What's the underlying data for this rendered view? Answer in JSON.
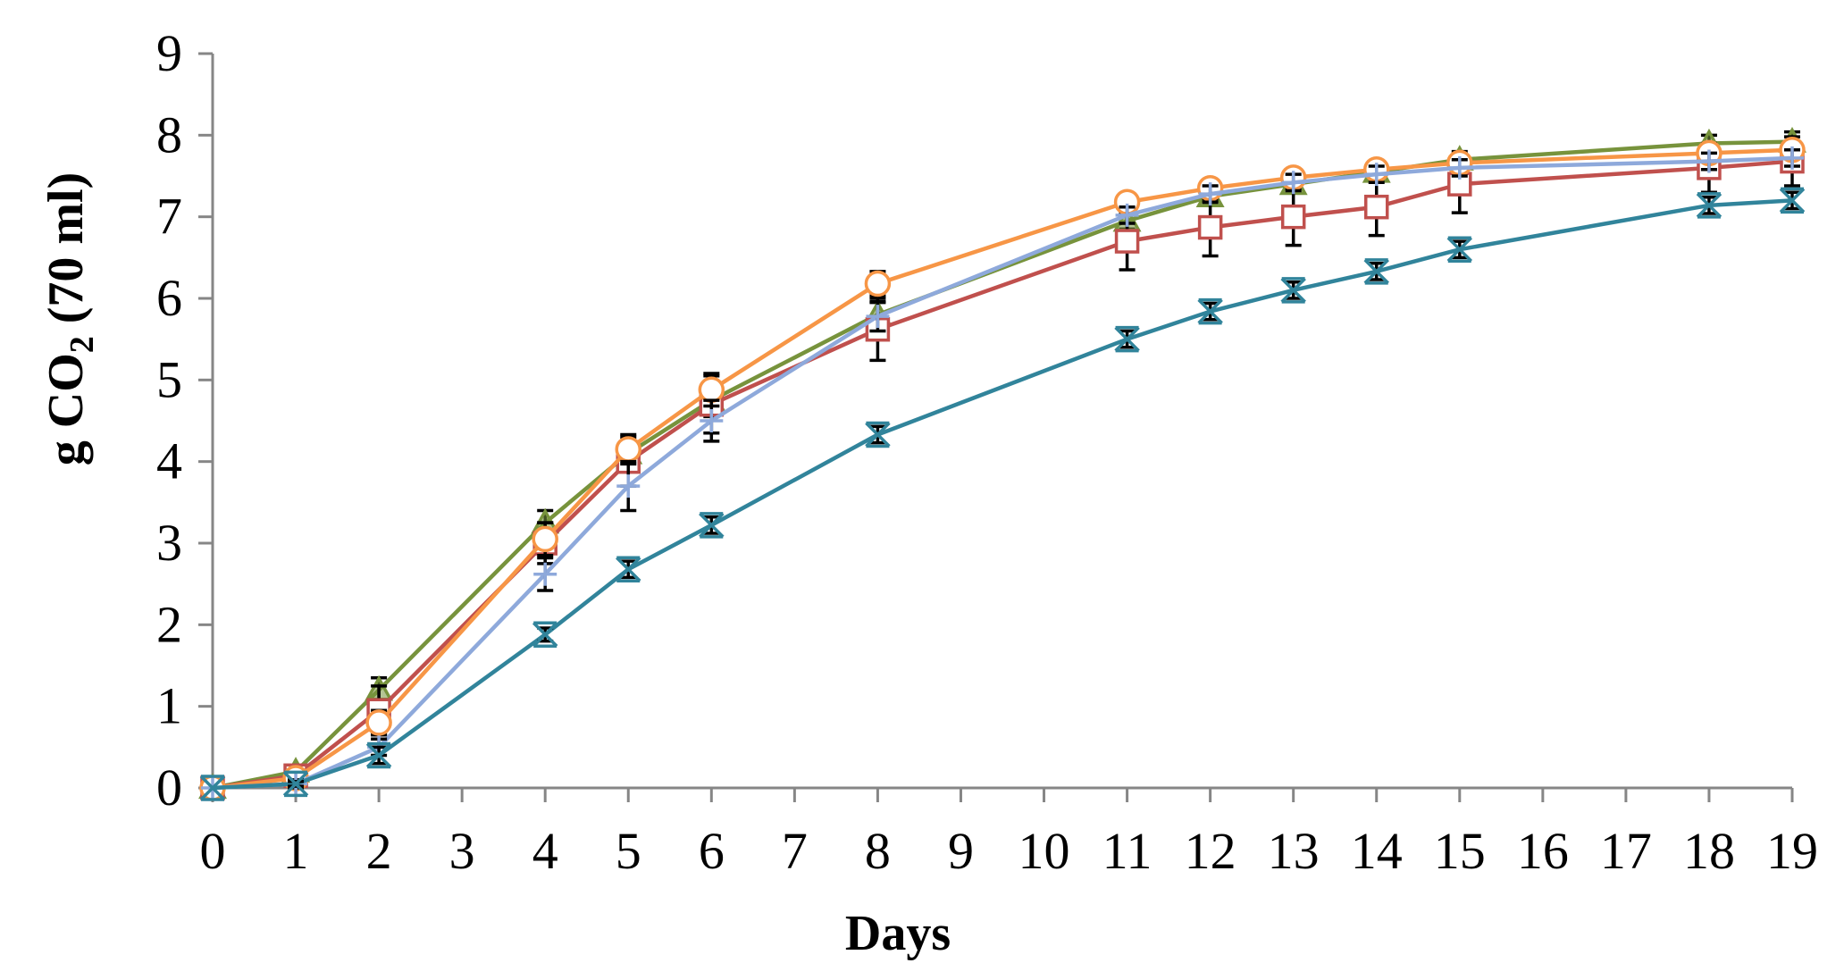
{
  "chart_data": {
    "type": "line",
    "title": "",
    "xlabel": "Days",
    "ylabel": {
      "prefix": "g CO",
      "subscript": "2",
      "suffix": " (70 ml)"
    },
    "xlim": [
      0,
      19
    ],
    "ylim": [
      0,
      9
    ],
    "xticks": [
      0,
      1,
      2,
      3,
      4,
      5,
      6,
      7,
      8,
      9,
      10,
      11,
      12,
      13,
      14,
      15,
      16,
      17,
      18,
      19
    ],
    "yticks": [
      0,
      1,
      2,
      3,
      4,
      5,
      6,
      7,
      8,
      9
    ],
    "grid": false,
    "legend": "none",
    "x": [
      0,
      1,
      2,
      4,
      5,
      6,
      8,
      11,
      12,
      13,
      14,
      15,
      18,
      19
    ],
    "series": [
      {
        "name": "green triangle series",
        "color": "#77933c",
        "marker": "triangle",
        "values": [
          0,
          0.2,
          1.2,
          3.25,
          4.1,
          4.75,
          5.8,
          6.95,
          7.25,
          7.4,
          7.55,
          7.7,
          7.9,
          7.92
        ],
        "errors": [
          0,
          0.05,
          0.15,
          0.15,
          0.15,
          0.2,
          0.15,
          0.1,
          0.1,
          0.1,
          0.1,
          0.1,
          0.1,
          0.12
        ]
      },
      {
        "name": "red square series",
        "color": "#c0504d",
        "marker": "square",
        "values": [
          0,
          0.15,
          0.95,
          3.0,
          4.0,
          4.7,
          5.62,
          6.7,
          6.87,
          7.0,
          7.12,
          7.4,
          7.6,
          7.68
        ],
        "errors": [
          0,
          0.05,
          0.3,
          0.25,
          0.3,
          0.35,
          0.38,
          0.35,
          0.35,
          0.35,
          0.35,
          0.35,
          0.3,
          0.3
        ]
      },
      {
        "name": "orange circle series",
        "color": "#f79646",
        "marker": "circle",
        "values": [
          0,
          0.12,
          0.8,
          3.05,
          4.15,
          4.88,
          6.18,
          7.18,
          7.35,
          7.48,
          7.58,
          7.66,
          7.78,
          7.82
        ],
        "errors": [
          0,
          0.05,
          0.15,
          0.2,
          0.18,
          0.2,
          0.15,
          0.1,
          0.1,
          0.1,
          0.1,
          0.1,
          0.1,
          0.1
        ]
      },
      {
        "name": "lavender plus series",
        "color": "#8ea9db",
        "marker": "plus",
        "values": [
          0,
          0.05,
          0.5,
          2.62,
          3.7,
          4.5,
          5.78,
          7.02,
          7.28,
          7.42,
          7.52,
          7.6,
          7.68,
          7.72
        ],
        "errors": [
          0,
          0.05,
          0.1,
          0.2,
          0.3,
          0.25,
          0.18,
          0.1,
          0.1,
          0.1,
          0.1,
          0.1,
          0.1,
          0.1
        ]
      },
      {
        "name": "teal x series",
        "color": "#31849b",
        "marker": "xstar",
        "values": [
          0,
          0.05,
          0.4,
          1.88,
          2.68,
          3.22,
          4.33,
          5.5,
          5.84,
          6.1,
          6.33,
          6.6,
          7.14,
          7.2
        ],
        "errors": [
          0,
          0.03,
          0.1,
          0.08,
          0.1,
          0.1,
          0.1,
          0.1,
          0.1,
          0.1,
          0.1,
          0.1,
          0.1,
          0.1
        ]
      }
    ]
  }
}
